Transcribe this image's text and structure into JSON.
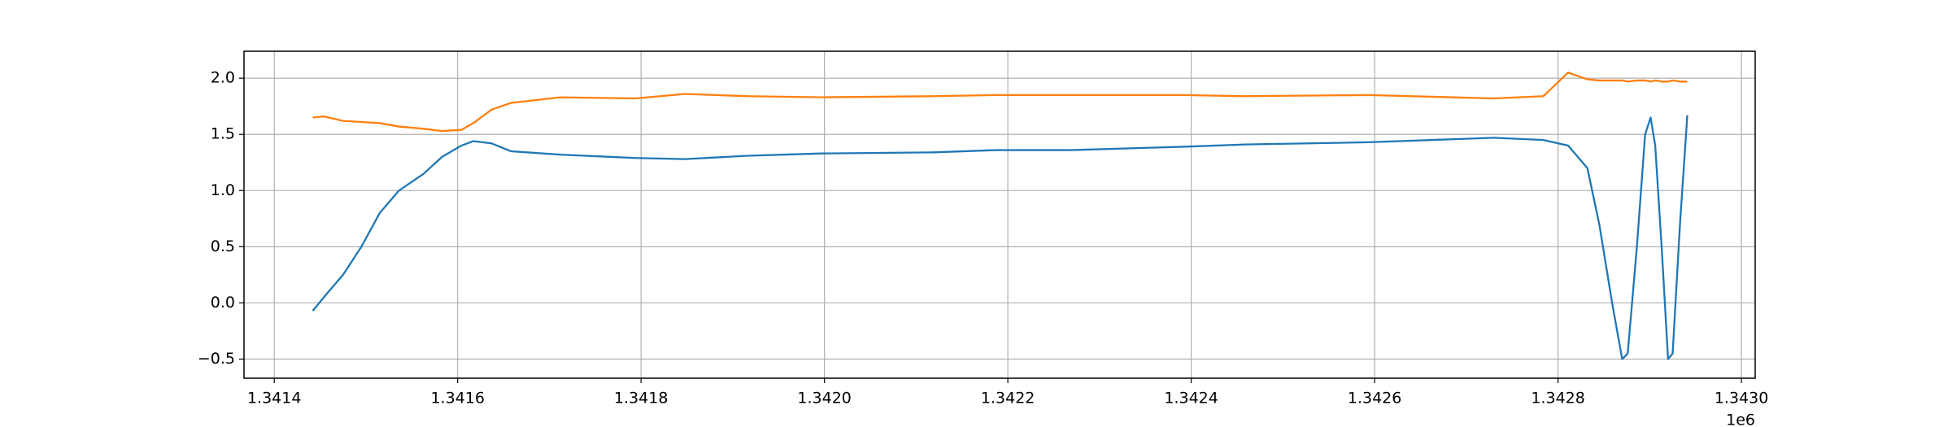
{
  "chart_data": {
    "type": "line",
    "x": [
      1341442,
      1341454,
      1341475,
      1341495,
      1341515,
      1341536,
      1341563,
      1341583,
      1341604,
      1341617,
      1341637,
      1341658,
      1341712,
      1341794,
      1341848,
      1341916,
      1341997,
      1342119,
      1342187,
      1342268,
      1342391,
      1342458,
      1342594,
      1342730,
      1342784,
      1342811,
      1342832,
      1342845,
      1342859,
      1342870,
      1342876,
      1342886,
      1342895,
      1342901,
      1342906,
      1342913,
      1342920,
      1342925,
      1342933,
      1342941
    ],
    "series": [
      {
        "color": "#1f77b4",
        "values": [
          -0.07,
          0.05,
          0.25,
          0.5,
          0.8,
          1.0,
          1.15,
          1.3,
          1.4,
          1.44,
          1.42,
          1.35,
          1.32,
          1.29,
          1.28,
          1.31,
          1.33,
          1.34,
          1.36,
          1.36,
          1.39,
          1.41,
          1.43,
          1.47,
          1.45,
          1.4,
          1.2,
          0.7,
          0.0,
          -0.5,
          -0.45,
          0.5,
          1.5,
          1.65,
          1.4,
          0.5,
          -0.5,
          -0.45,
          0.7,
          1.67
        ]
      },
      {
        "color": "#ff7f0e",
        "values": [
          1.65,
          1.66,
          1.62,
          1.61,
          1.6,
          1.57,
          1.55,
          1.53,
          1.54,
          1.6,
          1.72,
          1.78,
          1.83,
          1.82,
          1.86,
          1.84,
          1.83,
          1.84,
          1.85,
          1.85,
          1.85,
          1.84,
          1.85,
          1.82,
          1.84,
          2.05,
          1.99,
          1.98,
          1.98,
          1.98,
          1.97,
          1.98,
          1.98,
          1.97,
          1.98,
          1.97,
          1.97,
          1.98,
          1.97,
          1.97
        ]
      }
    ],
    "xlim": [
      1341367,
      1343015
    ],
    "xticks": [
      {
        "value": 1341400,
        "label": "1.3414"
      },
      {
        "value": 1341600,
        "label": "1.3416"
      },
      {
        "value": 1341800,
        "label": "1.3418"
      },
      {
        "value": 1342000,
        "label": "1.3420"
      },
      {
        "value": 1342200,
        "label": "1.3422"
      },
      {
        "value": 1342400,
        "label": "1.3424"
      },
      {
        "value": 1342600,
        "label": "1.3426"
      },
      {
        "value": 1342800,
        "label": "1.3428"
      },
      {
        "value": 1343000,
        "label": "1.3430"
      }
    ],
    "x_offset_label": "1e6",
    "ylim": [
      -0.67,
      2.24
    ],
    "yticks": [
      {
        "value": -0.5,
        "label": "−0.5"
      },
      {
        "value": 0,
        "label": "0.0"
      },
      0.5,
      {
        "value": 1,
        "label": "1.0"
      },
      1.5,
      {
        "value": 2,
        "label": "2.0"
      }
    ],
    "grid": true
  }
}
